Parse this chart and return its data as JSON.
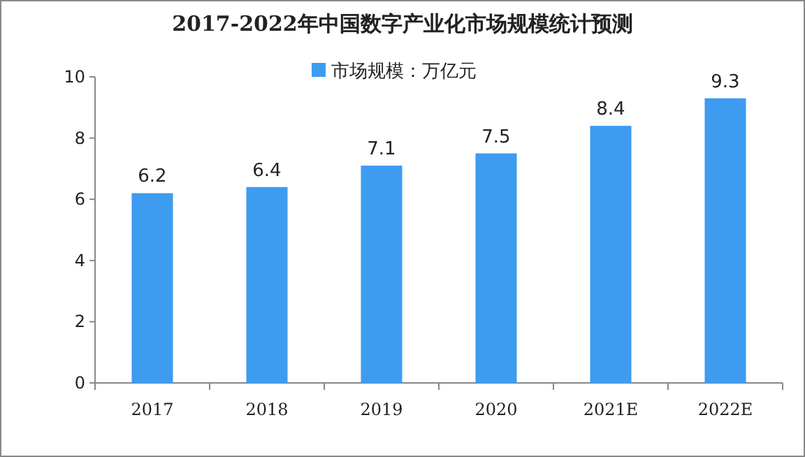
{
  "chart_data": {
    "type": "bar",
    "title": "2017-2022年中国数字产业化市场规模统计预测",
    "categories": [
      "2017",
      "2018",
      "2019",
      "2020",
      "2021E",
      "2022E"
    ],
    "series": [
      {
        "name": "市场规模：万亿元",
        "color": "#3d9cf0",
        "values": [
          6.2,
          6.4,
          7.1,
          7.5,
          8.4,
          9.3
        ]
      }
    ],
    "ylim": [
      0,
      10
    ],
    "yticks": [
      0,
      2,
      4,
      6,
      8,
      10
    ],
    "grid": false,
    "legend": "top",
    "data_labels": true
  }
}
